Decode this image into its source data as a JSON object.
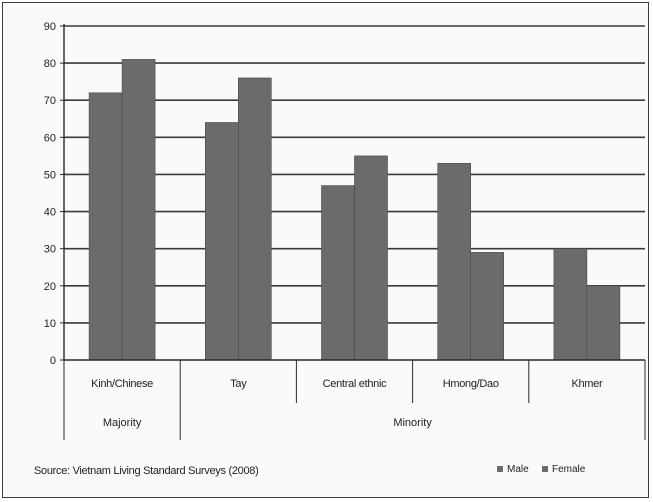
{
  "chart_data": {
    "type": "bar",
    "categories": [
      "Kinh/Chinese",
      "Tay",
      "Central ethnic",
      "Hmong/Dao",
      "Khmer"
    ],
    "groups": [
      {
        "label": "Majority",
        "categories": [
          "Kinh/Chinese"
        ]
      },
      {
        "label": "Minority",
        "categories": [
          "Tay",
          "Central ethnic",
          "Hmong/Dao",
          "Khmer"
        ]
      }
    ],
    "series": [
      {
        "name": "Male",
        "values": [
          72,
          64,
          47,
          53,
          30
        ]
      },
      {
        "name": "Female",
        "values": [
          81,
          76,
          55,
          29,
          20
        ]
      }
    ],
    "ylim": [
      0,
      90
    ],
    "yticks": [
      0,
      10,
      20,
      30,
      40,
      50,
      60,
      70,
      80,
      90
    ],
    "ylabel": "",
    "xlabel": "",
    "title": "",
    "grid": true,
    "legend_position": "bottom-right",
    "source": "Source: Vietnam Living Standard Surveys (2008)",
    "colors": {
      "bar": "#6b6b6b",
      "bar_edge": "#4a4a4a",
      "grid": "#3a3a3a",
      "axis": "#2a2a2a"
    }
  }
}
